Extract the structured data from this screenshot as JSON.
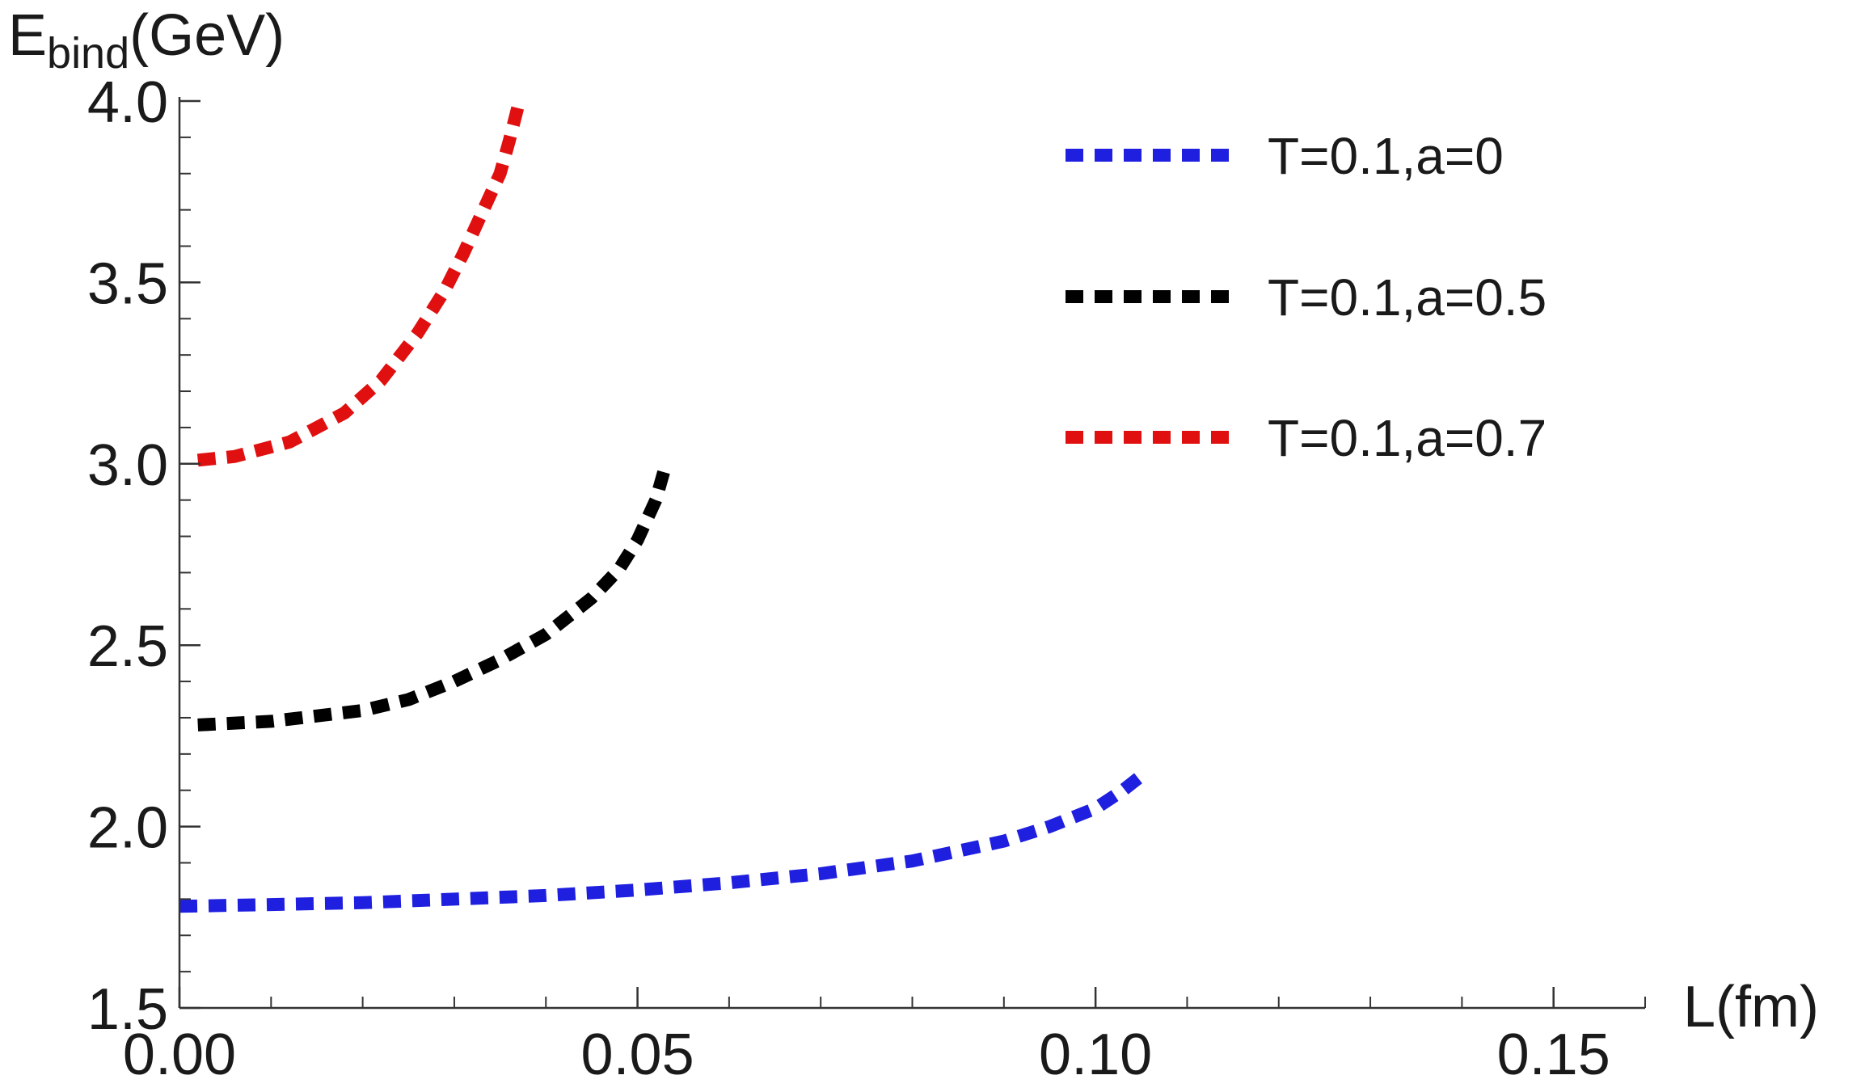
{
  "chart_data": {
    "type": "line",
    "xlabel": "L(fm)",
    "ylabel_main": "E",
    "ylabel_sub": "bind",
    "ylabel_unit": "(GeV)",
    "xlim": [
      0.0,
      0.16
    ],
    "ylim": [
      1.5,
      4.0
    ],
    "x_ticks": [
      {
        "value": 0.0,
        "label": "0.00"
      },
      {
        "value": 0.05,
        "label": "0.05"
      },
      {
        "value": 0.1,
        "label": "0.10"
      },
      {
        "value": 0.15,
        "label": "0.15"
      }
    ],
    "y_ticks": [
      {
        "value": 1.5,
        "label": "1.5"
      },
      {
        "value": 2.0,
        "label": "2.0"
      },
      {
        "value": 2.5,
        "label": "2.5"
      },
      {
        "value": 3.0,
        "label": "3.0"
      },
      {
        "value": 3.5,
        "label": "3.5"
      },
      {
        "value": 4.0,
        "label": "4.0"
      }
    ],
    "x_minor_step": 0.01,
    "y_minor_step": 0.1,
    "legend_position": "top-right",
    "grid": false,
    "series": [
      {
        "name": "T=0.1,a=0",
        "color": "#1f1fe0",
        "style": "dotted",
        "x": [
          0.0,
          0.01,
          0.02,
          0.03,
          0.04,
          0.05,
          0.06,
          0.07,
          0.08,
          0.09,
          0.095,
          0.1,
          0.103,
          0.105
        ],
        "y": [
          1.78,
          1.785,
          1.79,
          1.8,
          1.81,
          1.825,
          1.845,
          1.87,
          1.905,
          1.96,
          2.0,
          2.05,
          2.1,
          2.14
        ]
      },
      {
        "name": "T=0.1,a=0.5",
        "color": "#000000",
        "style": "dotted",
        "x": [
          0.002,
          0.01,
          0.02,
          0.025,
          0.03,
          0.035,
          0.04,
          0.045,
          0.048,
          0.05,
          0.052,
          0.053
        ],
        "y": [
          2.28,
          2.29,
          2.32,
          2.35,
          2.4,
          2.46,
          2.53,
          2.63,
          2.71,
          2.79,
          2.9,
          2.99
        ]
      },
      {
        "name": "T=0.1,a=0.7",
        "color": "#e01010",
        "style": "dotted",
        "x": [
          0.002,
          0.006,
          0.012,
          0.018,
          0.022,
          0.026,
          0.029,
          0.031,
          0.033,
          0.035,
          0.036,
          0.037
        ],
        "y": [
          3.01,
          3.02,
          3.06,
          3.14,
          3.23,
          3.36,
          3.48,
          3.58,
          3.69,
          3.8,
          3.89,
          3.99
        ]
      }
    ]
  }
}
